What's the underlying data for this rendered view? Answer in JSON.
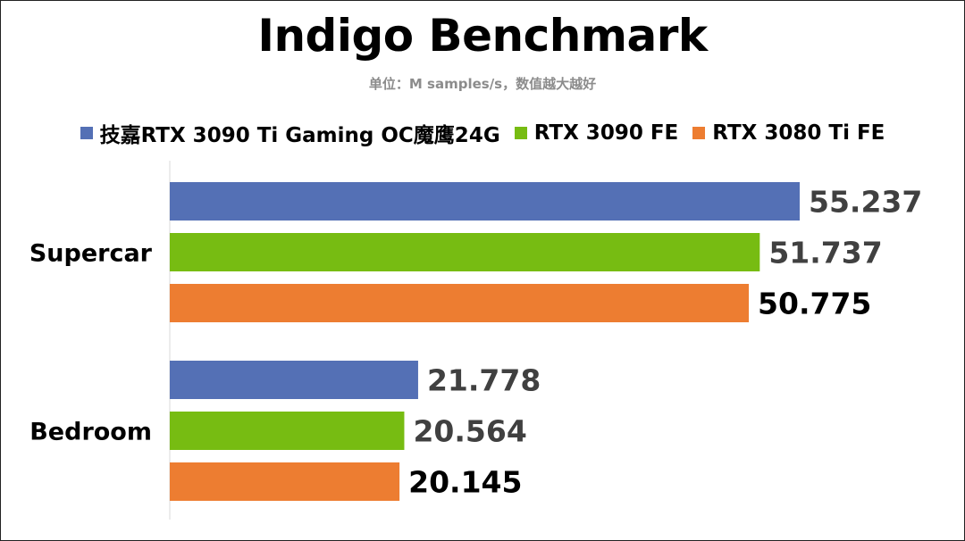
{
  "chart_data": {
    "type": "bar",
    "orientation": "horizontal",
    "title": "Indigo Benchmark",
    "subtitle": "单位：M samples/s，数值越大越好",
    "categories": [
      "Supercar",
      "Bedroom"
    ],
    "series": [
      {
        "name": "技嘉RTX 3090 Ti Gaming OC魔鹰24G",
        "color": "#5470b5",
        "values": [
          55.237,
          21.778
        ],
        "labels": [
          "55.237",
          "21.778"
        ],
        "label_color": "#404040"
      },
      {
        "name": "RTX 3090 FE",
        "color": "#77bc12",
        "values": [
          51.737,
          20.564
        ],
        "labels": [
          "51.737",
          "20.564"
        ],
        "label_color": "#404040"
      },
      {
        "name": "RTX 3080 Ti FE",
        "color": "#ed7d31",
        "values": [
          50.775,
          20.145
        ],
        "labels": [
          "50.775",
          "20.145"
        ],
        "label_color": "#000000"
      }
    ],
    "xlim": [
      0,
      55.237
    ],
    "grid": false,
    "legend_position": "top"
  }
}
